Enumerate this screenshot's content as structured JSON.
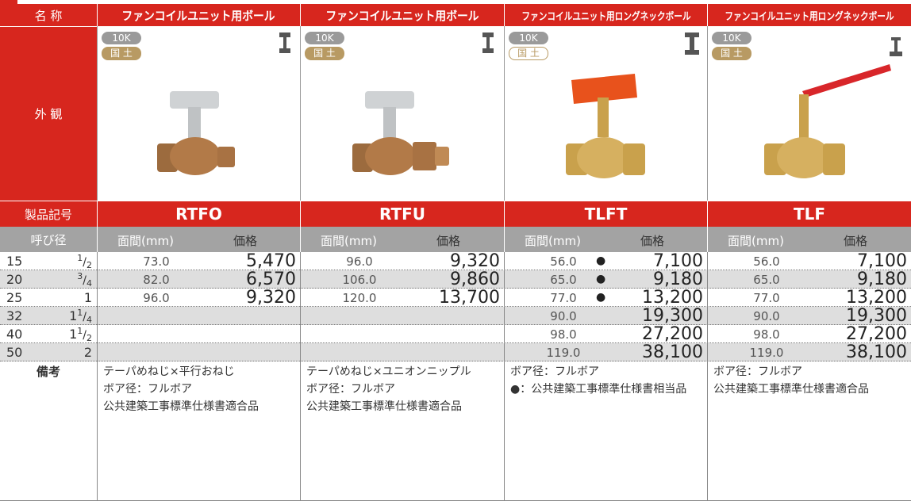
{
  "header": {
    "name_label": "名 称",
    "appearance_label": "外 観",
    "code_label": "製品記号",
    "size_label": "呼び径",
    "remarks_label": "備考"
  },
  "products": [
    {
      "name": "ファンコイルユニット用ボール",
      "pressure": "10K",
      "cert": "国 土",
      "code": "RTFO",
      "dim_label": "面間(mm)",
      "price_label": "価格",
      "remarks": [
        "テーパめねじ×平行おねじ",
        "ボア径：フルボア",
        "公共建築工事標準仕様書適合品"
      ]
    },
    {
      "name": "ファンコイルユニット用ボール",
      "pressure": "10K",
      "cert": "国 土",
      "code": "RTFU",
      "dim_label": "面間(mm)",
      "price_label": "価格",
      "remarks": [
        "テーパめねじ×ユニオンニップル",
        "ボア径：フルボア",
        "公共建築工事標準仕様書適合品"
      ]
    },
    {
      "name": "ファンコイルユニット用ロングネックボール",
      "pressure": "10K",
      "cert": "国 土",
      "code": "TLFT",
      "dim_label": "面間(mm)",
      "price_label": "価格",
      "remarks": [
        "ボア径：フルボア",
        "●：公共建築工事標準仕様書相当品"
      ]
    },
    {
      "name": "ファンコイルユニット用ロングネックボール",
      "pressure": "10K",
      "cert": "国 土",
      "code": "TLF",
      "dim_label": "面間(mm)",
      "price_label": "価格",
      "remarks": [
        "ボア径：フルボア",
        "公共建築工事標準仕様書適合品"
      ]
    }
  ],
  "table": {
    "rows": [
      {
        "size": "15",
        "inch": {
          "num": "1",
          "den": "2"
        },
        "cells": [
          {
            "dim": "73.0",
            "price": "5,470"
          },
          {
            "dim": "96.0",
            "price": "9,320"
          },
          {
            "dim": "56.0",
            "mark": "●",
            "price": "7,100"
          },
          {
            "dim": "56.0",
            "price": "7,100"
          }
        ]
      },
      {
        "size": "20",
        "inch": {
          "num": "3",
          "den": "4"
        },
        "cells": [
          {
            "dim": "82.0",
            "price": "6,570"
          },
          {
            "dim": "106.0",
            "price": "9,860"
          },
          {
            "dim": "65.0",
            "mark": "●",
            "price": "9,180"
          },
          {
            "dim": "65.0",
            "price": "9,180"
          }
        ]
      },
      {
        "size": "25",
        "inch": {
          "whole": "1"
        },
        "cells": [
          {
            "dim": "96.0",
            "price": "9,320"
          },
          {
            "dim": "120.0",
            "price": "13,700"
          },
          {
            "dim": "77.0",
            "mark": "●",
            "price": "13,200"
          },
          {
            "dim": "77.0",
            "price": "13,200"
          }
        ]
      },
      {
        "size": "32",
        "inch": {
          "whole": "1",
          "num": "1",
          "den": "4"
        },
        "cells": [
          null,
          null,
          {
            "dim": "90.0",
            "price": "19,300"
          },
          {
            "dim": "90.0",
            "price": "19,300"
          }
        ]
      },
      {
        "size": "40",
        "inch": {
          "whole": "1",
          "num": "1",
          "den": "2"
        },
        "cells": [
          null,
          null,
          {
            "dim": "98.0",
            "price": "27,200"
          },
          {
            "dim": "98.0",
            "price": "27,200"
          }
        ]
      },
      {
        "size": "50",
        "inch": {
          "whole": "2"
        },
        "cells": [
          null,
          null,
          {
            "dim": "119.0",
            "price": "38,100"
          },
          {
            "dim": "119.0",
            "price": "38,100"
          }
        ]
      }
    ]
  }
}
